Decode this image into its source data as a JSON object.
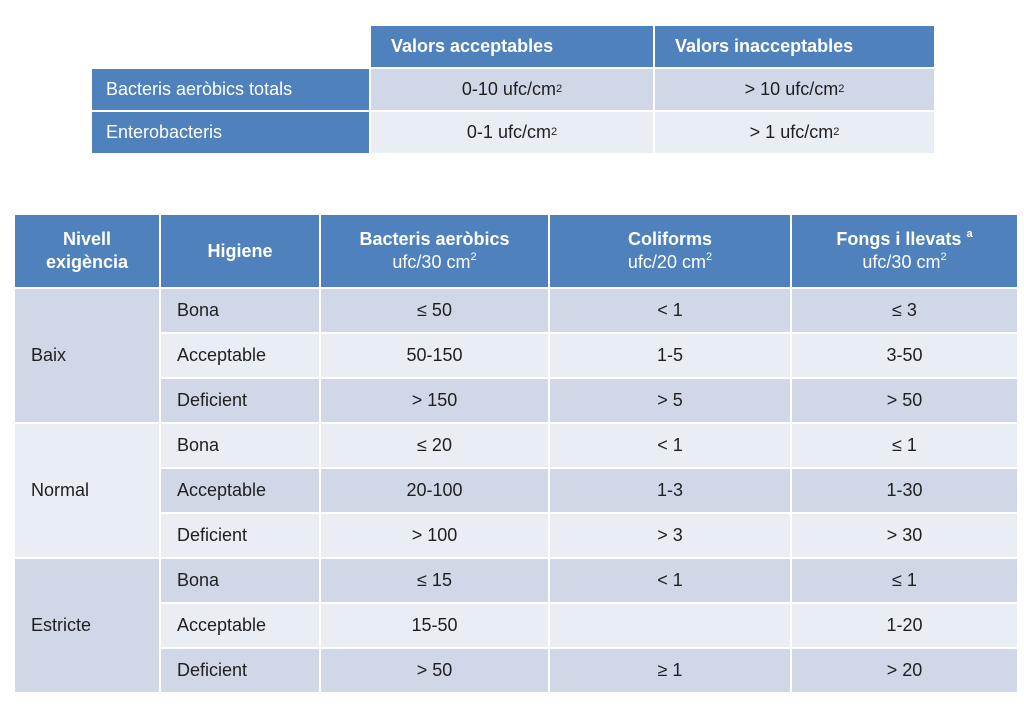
{
  "table1": {
    "headers": [
      "Valors acceptables",
      "Valors inacceptables"
    ],
    "rows": [
      {
        "label": "Bacteris aeròbics  totals",
        "acceptable": "0-10 ufc/cm",
        "acceptable_sup": "2",
        "unacceptable": "> 10 ufc/cm",
        "unacceptable_sup": "2"
      },
      {
        "label": "Enterobacteris",
        "acceptable": "0-1 ufc/cm",
        "acceptable_sup": "2",
        "unacceptable": "> 1 ufc/cm",
        "unacceptable_sup": "2"
      }
    ]
  },
  "table2": {
    "headers": {
      "level": [
        "Nivell",
        "exigència"
      ],
      "hygiene": "Higiene",
      "aerobic": {
        "title": "Bacteris aeròbics",
        "unit": "ufc/30 cm",
        "unit_sup": "2"
      },
      "coliforms": {
        "title": "Coliforms",
        "unit": "ufc/20 cm",
        "unit_sup": "2"
      },
      "fungi": {
        "title": "Fongs i llevats",
        "title_sup": "a",
        "unit": "ufc/30 cm",
        "unit_sup": "2"
      }
    },
    "groups": [
      {
        "level": "Baix",
        "rows": [
          {
            "hygiene": "Bona",
            "aerobic": "≤ 50",
            "coliforms": "< 1",
            "fungi": "≤ 3"
          },
          {
            "hygiene": "Acceptable",
            "aerobic": "50-150",
            "coliforms": "1-5",
            "fungi": "3-50"
          },
          {
            "hygiene": "Deficient",
            "aerobic": "> 150",
            "coliforms": "> 5",
            "fungi": "> 50"
          }
        ]
      },
      {
        "level": "Normal",
        "rows": [
          {
            "hygiene": "Bona",
            "aerobic": "≤ 20",
            "coliforms": "< 1",
            "fungi": "≤ 1"
          },
          {
            "hygiene": "Acceptable",
            "aerobic": "20-100",
            "coliforms": "1-3",
            "fungi": "1-30"
          },
          {
            "hygiene": "Deficient",
            "aerobic": "> 100",
            "coliforms": "> 3",
            "fungi": "> 30"
          }
        ]
      },
      {
        "level": "Estricte",
        "rows": [
          {
            "hygiene": "Bona",
            "aerobic": "≤ 15",
            "coliforms": "< 1",
            "fungi": "≤ 1"
          },
          {
            "hygiene": "Acceptable",
            "aerobic": "15-50",
            "coliforms": "",
            "fungi": "1-20"
          },
          {
            "hygiene": "Deficient",
            "aerobic": "> 50",
            "coliforms": "≥ 1",
            "fungi": "> 20"
          }
        ]
      }
    ]
  },
  "colors": {
    "header": "#4f81bd",
    "band_dark": "#d0d8e8",
    "band_light": "#e9edf4"
  }
}
